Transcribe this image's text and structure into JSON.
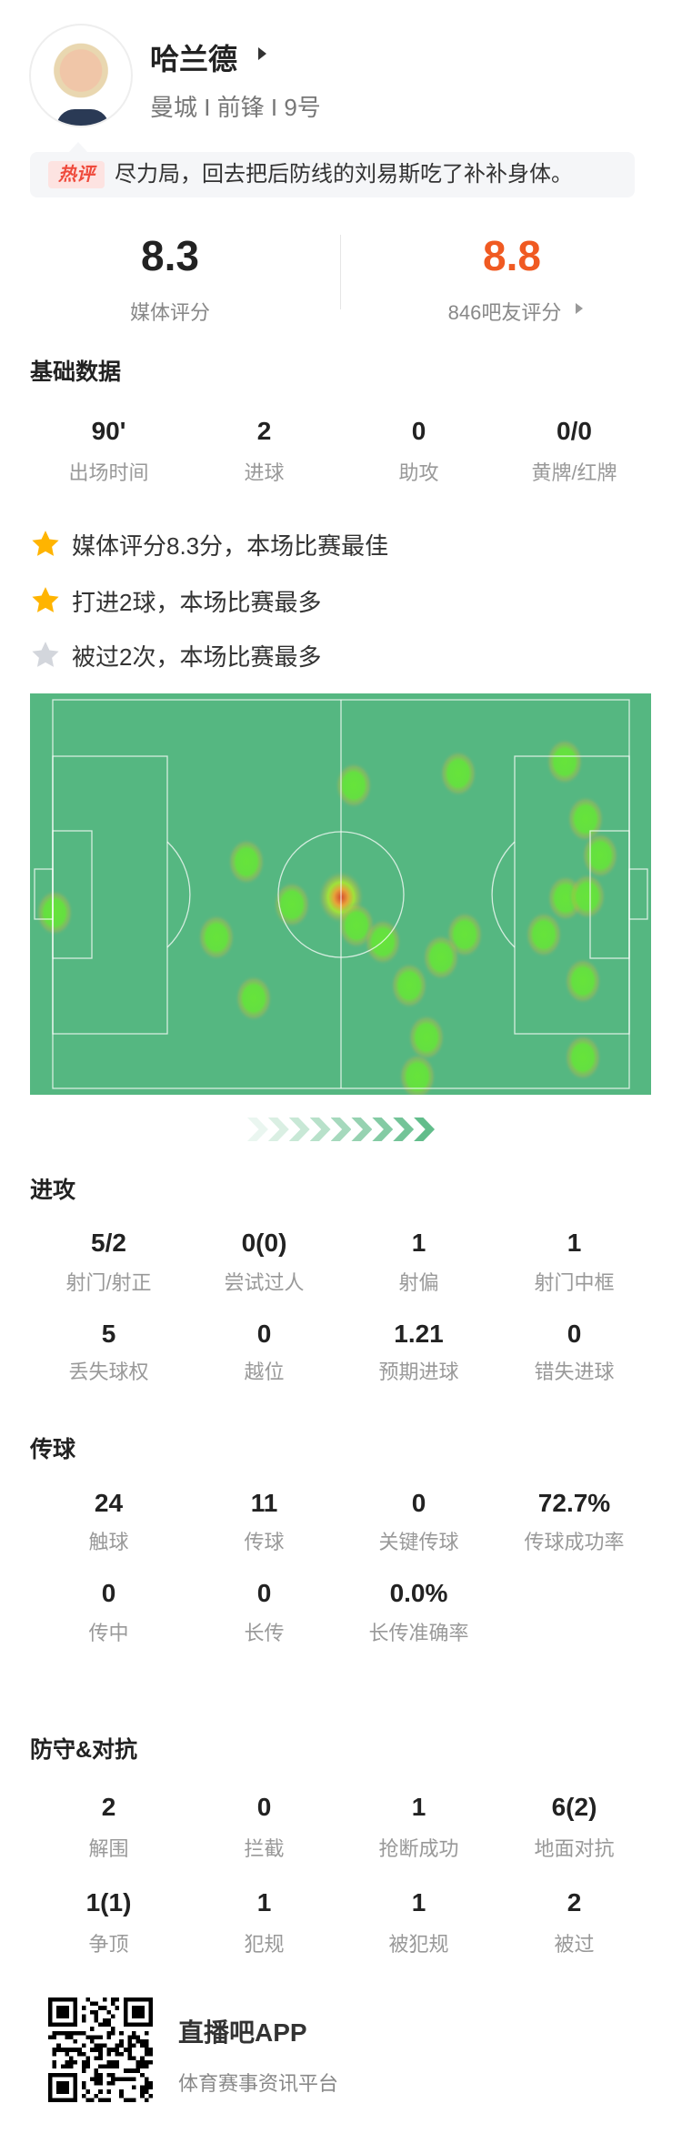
{
  "player": {
    "name": "哈兰德",
    "subtitle": "曼城 I 前锋 I 9号"
  },
  "hot_comment": {
    "badge": "热评",
    "text": "尽力局，回去把后防线的刘易斯吃了补补身体。"
  },
  "ratings": {
    "media": {
      "value": "8.3",
      "label": "媒体评分"
    },
    "fans": {
      "value": "8.8",
      "label": "846吧友评分",
      "color": "#f05a22"
    }
  },
  "basic": {
    "title": "基础数据",
    "stats": [
      {
        "value": "90'",
        "label": "出场时间"
      },
      {
        "value": "2",
        "label": "进球"
      },
      {
        "value": "0",
        "label": "助攻"
      },
      {
        "value": "0/0",
        "label": "黄牌/红牌"
      }
    ]
  },
  "highlights": [
    {
      "icon": "star-gold-icon",
      "text": "媒体评分8.3分，本场比赛最佳"
    },
    {
      "icon": "star-gold-icon",
      "text": "打进2球，本场比赛最多"
    },
    {
      "icon": "star-silver-icon",
      "text": "被过2次，本场比赛最多"
    }
  ],
  "attack": {
    "title": "进攻",
    "stats": [
      {
        "value": "5/2",
        "label": "射门/射正"
      },
      {
        "value": "0(0)",
        "label": "尝试过人"
      },
      {
        "value": "1",
        "label": "射偏"
      },
      {
        "value": "1",
        "label": "射门中框"
      },
      {
        "value": "5",
        "label": "丢失球权"
      },
      {
        "value": "0",
        "label": "越位"
      },
      {
        "value": "1.21",
        "label": "预期进球"
      },
      {
        "value": "0",
        "label": "错失进球"
      }
    ]
  },
  "passing": {
    "title": "传球",
    "stats": [
      {
        "value": "24",
        "label": "触球"
      },
      {
        "value": "11",
        "label": "传球"
      },
      {
        "value": "0",
        "label": "关键传球"
      },
      {
        "value": "72.7%",
        "label": "传球成功率"
      },
      {
        "value": "0",
        "label": "传中"
      },
      {
        "value": "0",
        "label": "长传"
      },
      {
        "value": "0.0%",
        "label": "长传准确率"
      }
    ]
  },
  "defense": {
    "title": "防守&对抗",
    "stats": [
      {
        "value": "2",
        "label": "解围"
      },
      {
        "value": "0",
        "label": "拦截"
      },
      {
        "value": "1",
        "label": "抢断成功"
      },
      {
        "value": "6(2)",
        "label": "地面对抗"
      },
      {
        "value": "1(1)",
        "label": "争顶"
      },
      {
        "value": "1",
        "label": "犯规"
      },
      {
        "value": "1",
        "label": "被犯规"
      },
      {
        "value": "2",
        "label": "被过"
      }
    ]
  },
  "footer": {
    "app_name": "直播吧APP",
    "tagline": "体育赛事资讯平台"
  },
  "colors": {
    "pitch": "#55b781",
    "star_gold": "#ffb400",
    "star_silver": "#d3d6dc"
  }
}
